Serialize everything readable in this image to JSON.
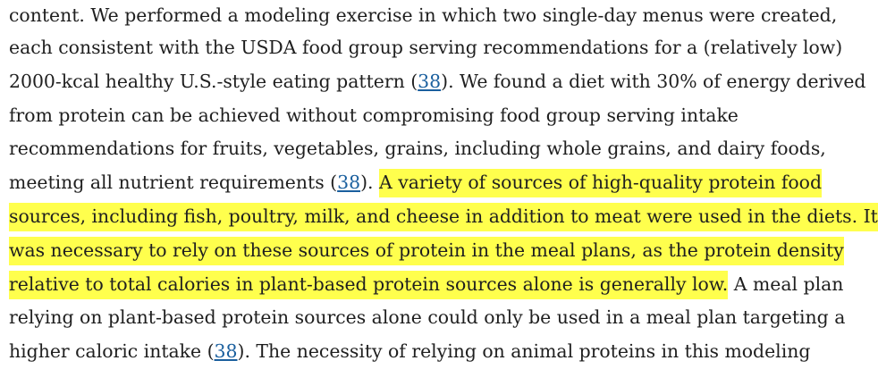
{
  "paragraph": {
    "lines": [
      {
        "segments": [
          {
            "text": "content. We performed a modeling exercise in which two single-day menus were created,"
          }
        ]
      },
      {
        "segments": [
          {
            "text": "each consistent with the USDA food group serving recommendations for a (relatively low)"
          }
        ]
      },
      {
        "segments": [
          {
            "text": "2000-kcal healthy U.S.-style eating pattern ("
          },
          {
            "text": "38",
            "ref": true
          },
          {
            "text": "). We found a diet with 30% of energy derived"
          }
        ]
      },
      {
        "segments": [
          {
            "text": "from protein can be achieved without compromising food group serving intake"
          }
        ]
      },
      {
        "segments": [
          {
            "text": "recommendations for fruits, vegetables, grains, including whole grains, and dairy foods,"
          }
        ]
      },
      {
        "segments": [
          {
            "text": "meeting all nutrient requirements ("
          },
          {
            "text": "38",
            "ref": true
          },
          {
            "text": "). "
          },
          {
            "text": "A variety of sources of high-quality protein food",
            "highlight": true
          }
        ]
      },
      {
        "segments": [
          {
            "text": "sources, including fish, poultry, milk, and cheese in addition to meat were used in the diets. It",
            "highlight": true
          }
        ]
      },
      {
        "segments": [
          {
            "text": "was necessary to rely on these sources of protein in the meal plans, as the protein density",
            "highlight": true
          }
        ]
      },
      {
        "segments": [
          {
            "text": "relative to total calories in plant-based protein sources alone is generally low.",
            "highlight": true
          },
          {
            "text": " A meal plan"
          }
        ]
      },
      {
        "segments": [
          {
            "text": "relying on plant-based protein sources alone could only be used in a meal plan targeting a"
          }
        ]
      },
      {
        "segments": [
          {
            "text": "higher caloric intake ("
          },
          {
            "text": "38",
            "ref": true
          },
          {
            "text": "). The necessity of relying on animal proteins in this modeling"
          }
        ]
      }
    ]
  },
  "colors": {
    "text": "#1f1f1f",
    "link": "#1a5f9e",
    "highlight": "#ffff4d"
  }
}
